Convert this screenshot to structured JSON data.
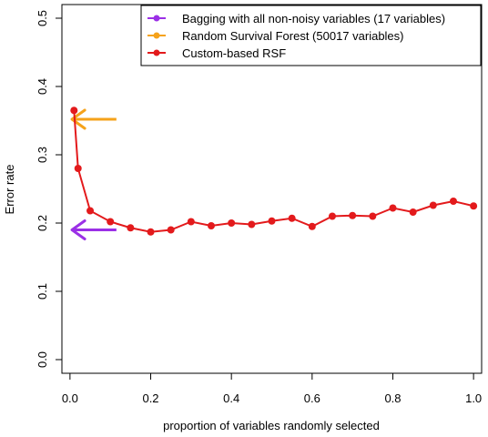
{
  "chart_data": {
    "type": "line",
    "title": "",
    "xlabel": "proportion of variables randomly selected",
    "ylabel": "Error rate",
    "xlim": [
      -0.02,
      1.02
    ],
    "ylim": [
      -0.02,
      0.52
    ],
    "xticks": [
      "0.0",
      "0.2",
      "0.4",
      "0.6",
      "0.8",
      "1.0"
    ],
    "yticks": [
      "0.0",
      "0.1",
      "0.2",
      "0.3",
      "0.4",
      "0.5"
    ],
    "grid": false,
    "legend_position": "top-right",
    "legend": [
      {
        "label": "Bagging with all non-noisy variables (17 variables)",
        "color": "#9b30e6"
      },
      {
        "label": "Random Survival Forest (50017 variables)",
        "color": "#f5a21a"
      },
      {
        "label": "Custom-based RSF",
        "color": "#e31a1c"
      }
    ],
    "series": [
      {
        "name": "Custom-based RSF",
        "color": "#e31a1c",
        "x": [
          0.01,
          0.02,
          0.05,
          0.1,
          0.15,
          0.2,
          0.25,
          0.3,
          0.35,
          0.4,
          0.45,
          0.5,
          0.55,
          0.6,
          0.65,
          0.7,
          0.75,
          0.8,
          0.85,
          0.9,
          0.95,
          1.0
        ],
        "y": [
          0.365,
          0.28,
          0.218,
          0.202,
          0.193,
          0.187,
          0.19,
          0.202,
          0.196,
          0.2,
          0.198,
          0.203,
          0.207,
          0.195,
          0.21,
          0.211,
          0.21,
          0.222,
          0.216,
          0.226,
          0.232,
          0.225
        ]
      }
    ],
    "arrows": [
      {
        "name": "Random Survival Forest",
        "value": 0.352,
        "color": "#f5a21a"
      },
      {
        "name": "Bagging with all non-noisy variables",
        "value": 0.19,
        "color": "#9b30e6"
      }
    ]
  }
}
